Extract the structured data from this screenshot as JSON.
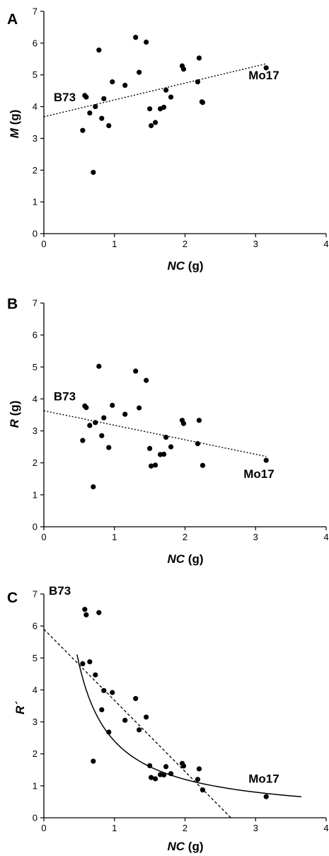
{
  "chart_data": [
    {
      "type": "scatter",
      "panel_letter": "A",
      "xlabel_italic": "NC",
      "xlabel_unit": " (g)",
      "ylabel_italic": "M",
      "ylabel_unit": " (g)",
      "xlim": [
        0,
        4
      ],
      "ylim": [
        0,
        7
      ],
      "xticks": [
        0,
        1,
        2,
        3,
        4
      ],
      "yticks": [
        0,
        1,
        2,
        3,
        4,
        5,
        6,
        7
      ],
      "grid": false,
      "points": [
        {
          "x": 0.55,
          "y": 3.25
        },
        {
          "x": 0.58,
          "y": 4.35
        },
        {
          "x": 0.6,
          "y": 4.3
        },
        {
          "x": 0.65,
          "y": 3.8
        },
        {
          "x": 0.7,
          "y": 1.93
        },
        {
          "x": 0.73,
          "y": 4.0
        },
        {
          "x": 0.78,
          "y": 5.78
        },
        {
          "x": 0.82,
          "y": 3.63
        },
        {
          "x": 0.85,
          "y": 4.25
        },
        {
          "x": 0.92,
          "y": 3.4
        },
        {
          "x": 0.97,
          "y": 4.78
        },
        {
          "x": 1.15,
          "y": 4.67
        },
        {
          "x": 1.3,
          "y": 6.18
        },
        {
          "x": 1.35,
          "y": 5.08
        },
        {
          "x": 1.45,
          "y": 6.03
        },
        {
          "x": 1.5,
          "y": 3.93
        },
        {
          "x": 1.52,
          "y": 3.4
        },
        {
          "x": 1.58,
          "y": 3.5
        },
        {
          "x": 1.65,
          "y": 3.93
        },
        {
          "x": 1.7,
          "y": 3.98
        },
        {
          "x": 1.73,
          "y": 4.52
        },
        {
          "x": 1.8,
          "y": 4.3
        },
        {
          "x": 1.96,
          "y": 5.28
        },
        {
          "x": 1.98,
          "y": 5.18
        },
        {
          "x": 2.18,
          "y": 4.78
        },
        {
          "x": 2.2,
          "y": 5.53
        },
        {
          "x": 2.24,
          "y": 4.15
        },
        {
          "x": 2.25,
          "y": 4.13
        },
        {
          "x": 3.15,
          "y": 5.22
        }
      ],
      "trendlines": [
        {
          "kind": "linear",
          "style": "dotted",
          "x": [
            0,
            3.15
          ],
          "y": [
            3.68,
            5.35
          ]
        }
      ],
      "annotations": [
        {
          "text": "B73",
          "x": 0.6,
          "y": 4.3,
          "dx": -46,
          "dy": 6
        },
        {
          "text": "Mo17",
          "x": 3.15,
          "y": 5.22,
          "dx": -25,
          "dy": 16
        }
      ]
    },
    {
      "type": "scatter",
      "panel_letter": "B",
      "xlabel_italic": "NC",
      "xlabel_unit": " (g)",
      "ylabel_italic": "R",
      "ylabel_unit": " (g)",
      "xlim": [
        0,
        4
      ],
      "ylim": [
        0,
        7
      ],
      "xticks": [
        0,
        1,
        2,
        3,
        4
      ],
      "yticks": [
        0,
        1,
        2,
        3,
        4,
        5,
        6,
        7
      ],
      "grid": false,
      "points": [
        {
          "x": 0.55,
          "y": 2.7
        },
        {
          "x": 0.58,
          "y": 3.78
        },
        {
          "x": 0.6,
          "y": 3.73
        },
        {
          "x": 0.65,
          "y": 3.17
        },
        {
          "x": 0.7,
          "y": 1.25
        },
        {
          "x": 0.73,
          "y": 3.26
        },
        {
          "x": 0.78,
          "y": 5.02
        },
        {
          "x": 0.82,
          "y": 2.85
        },
        {
          "x": 0.85,
          "y": 3.41
        },
        {
          "x": 0.92,
          "y": 2.48
        },
        {
          "x": 0.97,
          "y": 3.8
        },
        {
          "x": 1.15,
          "y": 3.52
        },
        {
          "x": 1.3,
          "y": 4.87
        },
        {
          "x": 1.35,
          "y": 3.72
        },
        {
          "x": 1.45,
          "y": 4.58
        },
        {
          "x": 1.5,
          "y": 2.45
        },
        {
          "x": 1.52,
          "y": 1.9
        },
        {
          "x": 1.58,
          "y": 1.93
        },
        {
          "x": 1.65,
          "y": 2.26
        },
        {
          "x": 1.7,
          "y": 2.27
        },
        {
          "x": 1.73,
          "y": 2.8
        },
        {
          "x": 1.8,
          "y": 2.5
        },
        {
          "x": 1.96,
          "y": 3.33
        },
        {
          "x": 1.98,
          "y": 3.23
        },
        {
          "x": 2.18,
          "y": 2.6
        },
        {
          "x": 2.2,
          "y": 3.33
        },
        {
          "x": 2.25,
          "y": 1.92
        },
        {
          "x": 3.15,
          "y": 2.08
        }
      ],
      "trendlines": [
        {
          "kind": "linear",
          "style": "dotted",
          "x": [
            0,
            3.15
          ],
          "y": [
            3.63,
            2.2
          ]
        }
      ],
      "annotations": [
        {
          "text": "B73",
          "x": 0.6,
          "y": 3.73,
          "dx": -46,
          "dy": -10
        },
        {
          "text": "Mo17",
          "x": 3.15,
          "y": 2.08,
          "dx": -32,
          "dy": 25
        }
      ]
    },
    {
      "type": "scatter",
      "panel_letter": "C",
      "xlabel_italic": "NC",
      "xlabel_unit": " (g)",
      "ylabel_italic": "R´",
      "ylabel_unit": "",
      "xlim": [
        0,
        4
      ],
      "ylim": [
        0,
        7
      ],
      "xticks": [
        0,
        1,
        2,
        3,
        4
      ],
      "yticks": [
        0,
        1,
        2,
        3,
        4,
        5,
        6,
        7
      ],
      "grid": false,
      "points": [
        {
          "x": 0.55,
          "y": 4.82
        },
        {
          "x": 0.58,
          "y": 6.52
        },
        {
          "x": 0.6,
          "y": 6.35
        },
        {
          "x": 0.65,
          "y": 4.88
        },
        {
          "x": 0.7,
          "y": 1.77
        },
        {
          "x": 0.73,
          "y": 4.47
        },
        {
          "x": 0.78,
          "y": 6.42
        },
        {
          "x": 0.82,
          "y": 3.38
        },
        {
          "x": 0.85,
          "y": 3.98
        },
        {
          "x": 0.92,
          "y": 2.68
        },
        {
          "x": 0.97,
          "y": 3.92
        },
        {
          "x": 1.15,
          "y": 3.05
        },
        {
          "x": 1.3,
          "y": 3.73
        },
        {
          "x": 1.35,
          "y": 2.75
        },
        {
          "x": 1.45,
          "y": 3.15
        },
        {
          "x": 1.5,
          "y": 1.63
        },
        {
          "x": 1.52,
          "y": 1.26
        },
        {
          "x": 1.58,
          "y": 1.22
        },
        {
          "x": 1.65,
          "y": 1.35
        },
        {
          "x": 1.7,
          "y": 1.34
        },
        {
          "x": 1.73,
          "y": 1.6
        },
        {
          "x": 1.8,
          "y": 1.38
        },
        {
          "x": 1.96,
          "y": 1.7
        },
        {
          "x": 1.98,
          "y": 1.62
        },
        {
          "x": 2.18,
          "y": 1.2
        },
        {
          "x": 2.2,
          "y": 1.53
        },
        {
          "x": 2.25,
          "y": 0.87
        },
        {
          "x": 3.15,
          "y": 0.66
        }
      ],
      "trendlines": [
        {
          "kind": "linear",
          "style": "dashed",
          "x": [
            0,
            2.65
          ],
          "y": [
            5.9,
            0
          ]
        },
        {
          "kind": "power",
          "style": "solid",
          "a": 2.4,
          "b": -1,
          "x_range": [
            0.47,
            3.65
          ]
        }
      ],
      "annotations": [
        {
          "text": "B73",
          "x": 0.0,
          "y": 7.0,
          "dx": 7,
          "dy": 1
        },
        {
          "text": "Mo17",
          "x": 2.9,
          "y": 1.1,
          "dx": 0,
          "dy": 0
        }
      ]
    }
  ]
}
